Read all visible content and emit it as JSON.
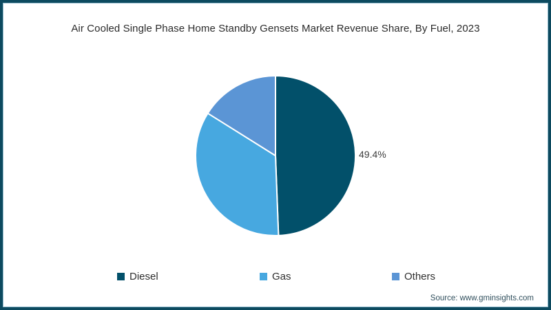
{
  "title": "Air Cooled Single Phase Home Standby Gensets Market Revenue Share, By Fuel, 2023",
  "source": "Source: www.gminsights.com",
  "chart_data": {
    "type": "pie",
    "title": "Air Cooled Single Phase Home Standby Gensets Market Revenue Share, By Fuel, 2023",
    "categories": [
      "Diesel",
      "Gas",
      "Others"
    ],
    "values": [
      49.4,
      34.5,
      16.1
    ],
    "colors": [
      "#02506a",
      "#47a8e0",
      "#5b95d5"
    ],
    "start_angle_deg": -90,
    "direction": "clockwise",
    "data_label": {
      "series": "Diesel",
      "text": "49.4%"
    },
    "legend_position": "bottom",
    "slice_border_color": "#ffffff"
  },
  "legend": {
    "items": [
      {
        "label": "Diesel",
        "color": "#02506a"
      },
      {
        "label": "Gas",
        "color": "#47a8e0"
      },
      {
        "label": "Others",
        "color": "#5b95d5"
      }
    ]
  },
  "frame": {
    "outer_color": "#0d4a5f",
    "inner_color": "#8fb9cb"
  }
}
